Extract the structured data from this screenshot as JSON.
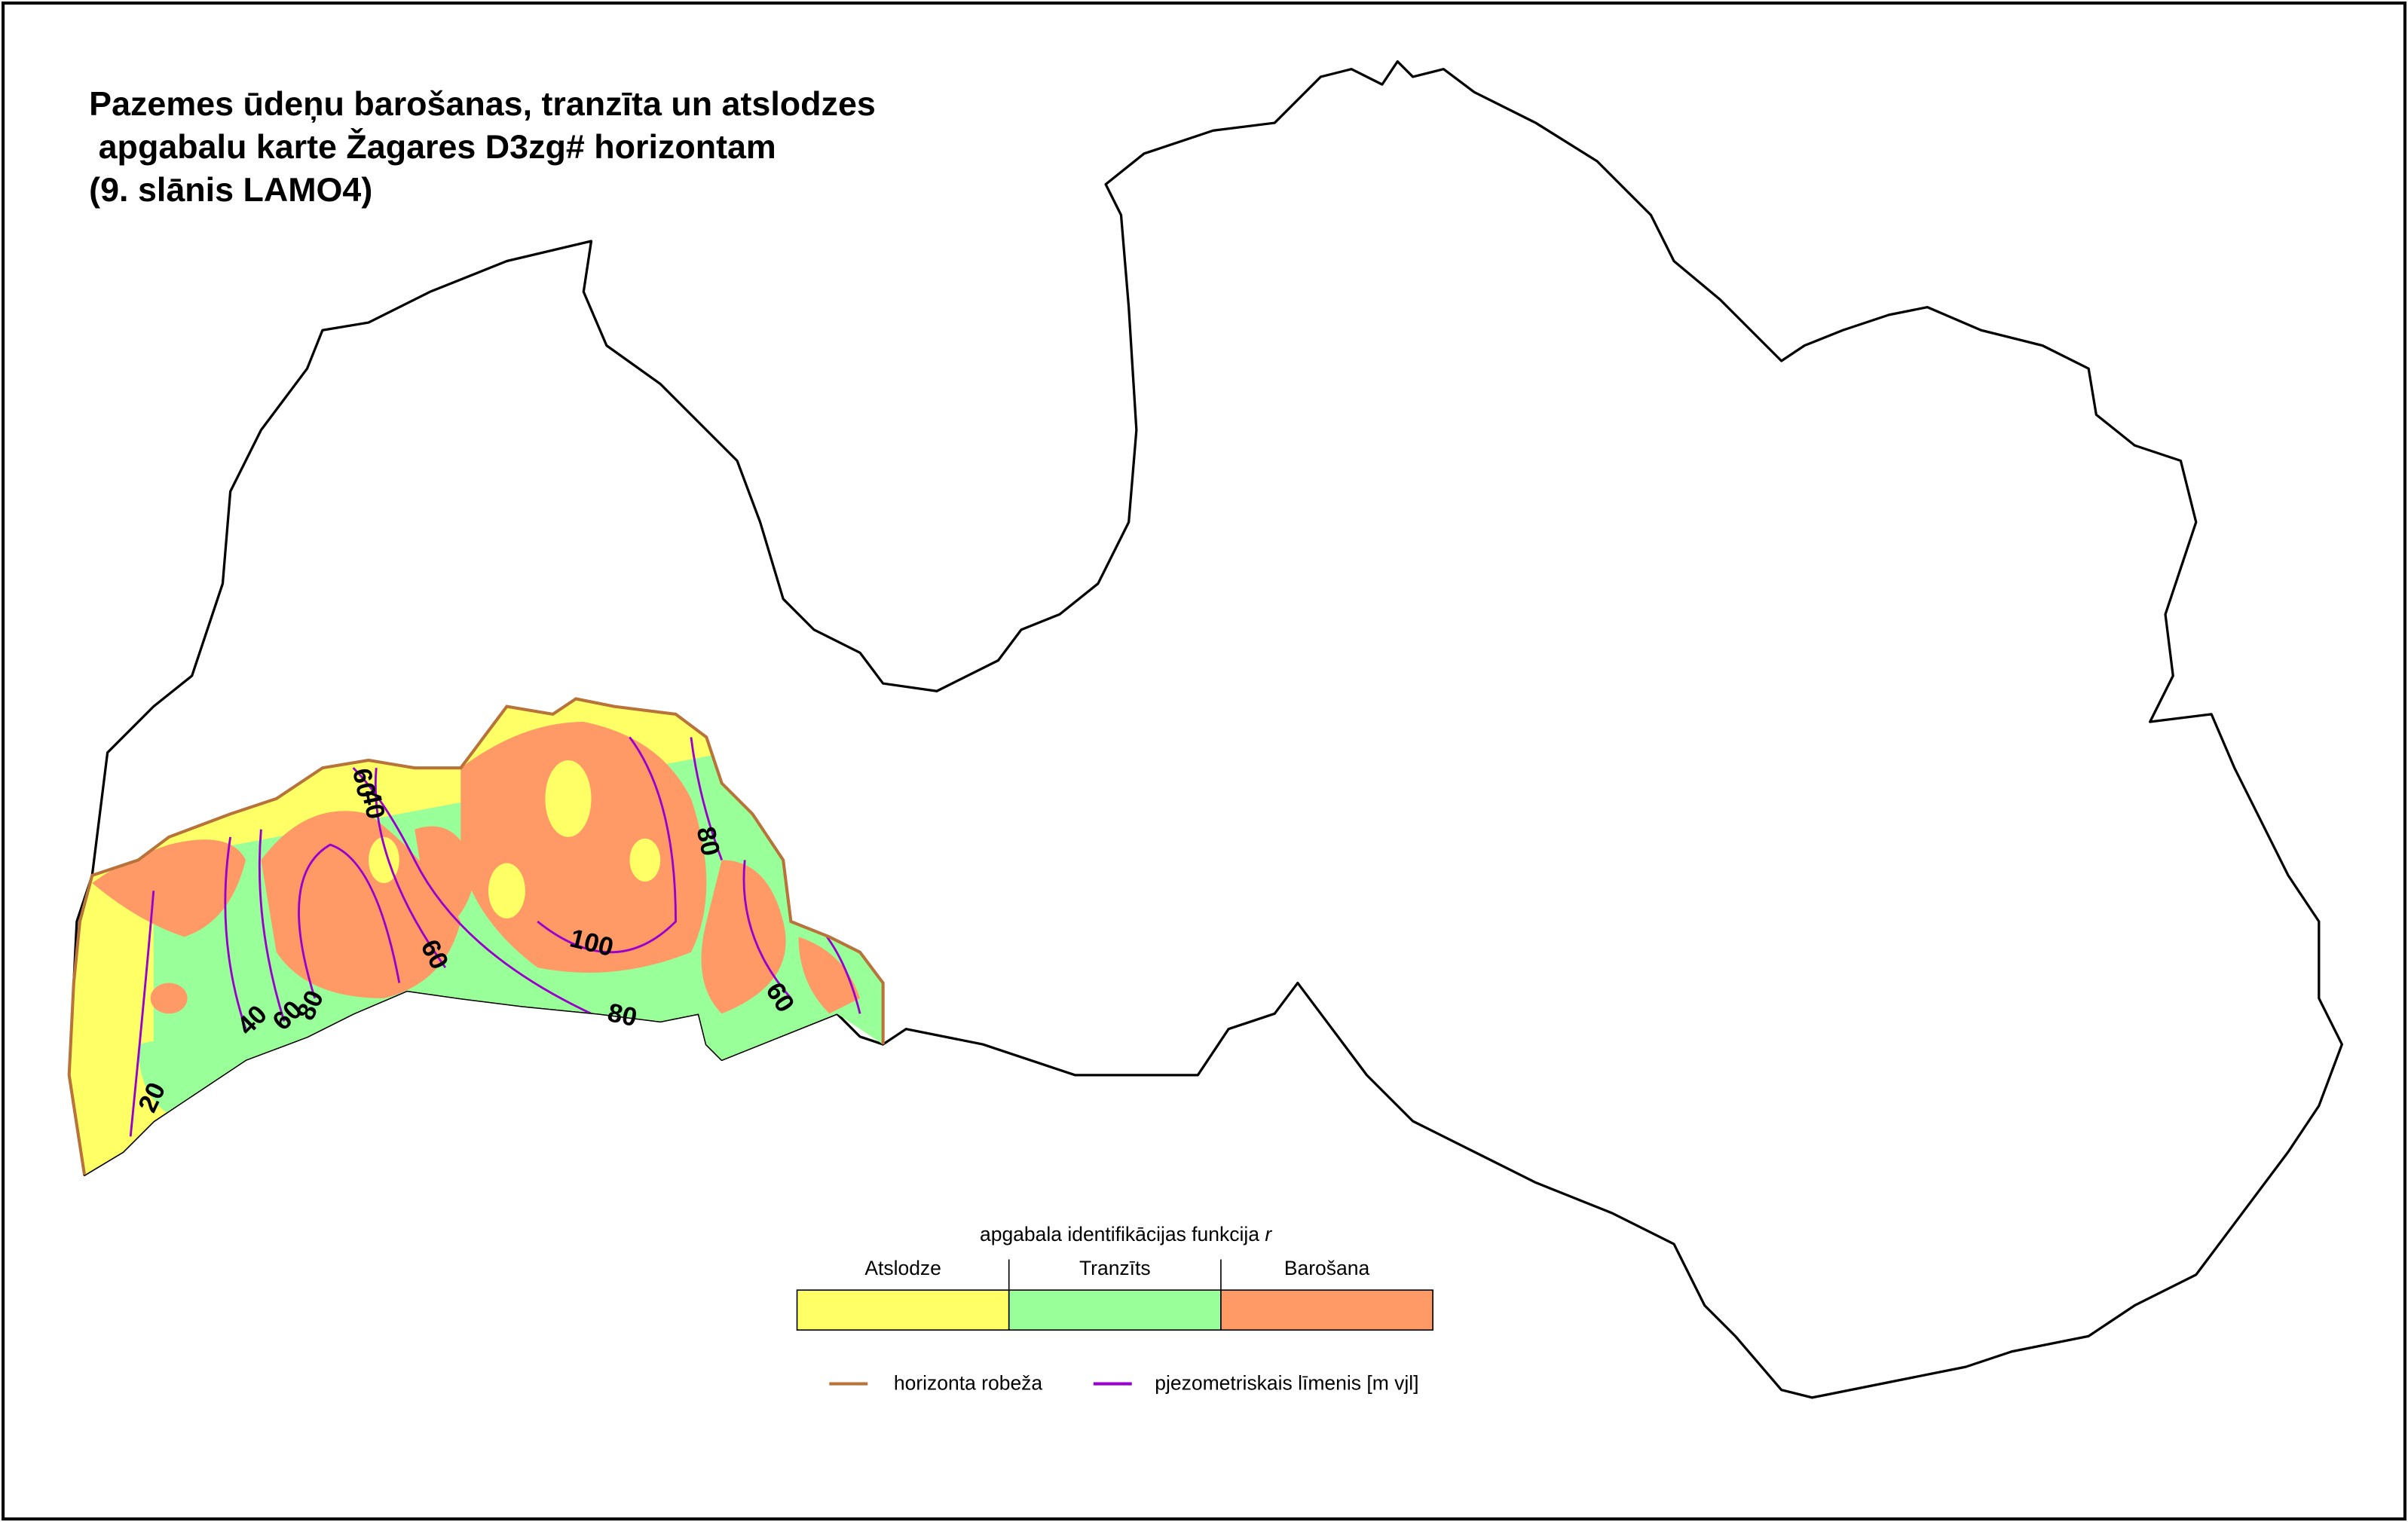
{
  "title": [
    "Pazemes ūdeņu barošanas, tranzīta un atslodzes",
    " apgabalu karte Žagares D3zg# horizontam",
    "(9. slānis LAMO4)"
  ],
  "legend": {
    "title": "apgabala identifikācijas funkcija",
    "title_variable": "r",
    "classes": [
      {
        "name": "Atslodze",
        "color": "#ffff66"
      },
      {
        "name": "Tranzīts",
        "color": "#99ff99"
      },
      {
        "name": "Barošana",
        "color": "#ff9966"
      }
    ],
    "lines": [
      {
        "name": "horizonta robeža",
        "color": "#b8733a"
      },
      {
        "name": "pjezometriskais līmenis [m vjl]",
        "color": "#9900cc"
      }
    ]
  },
  "contour_labels": [
    20,
    40,
    60,
    80,
    80,
    60,
    40,
    60,
    100,
    80,
    60
  ]
}
